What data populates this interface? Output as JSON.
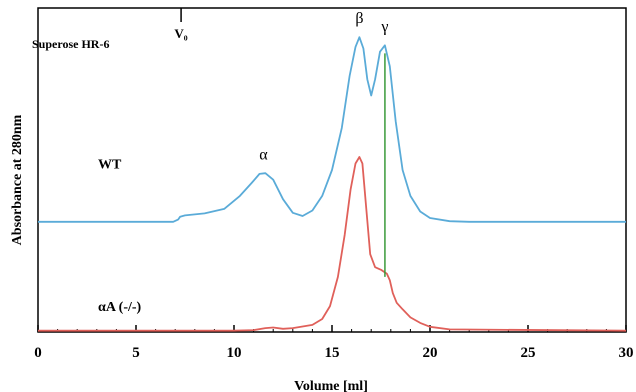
{
  "chart_data": {
    "type": "line",
    "title": "Superose HR-6",
    "xlabel": "Volume [ml]",
    "ylabel": "Absorbance at 280nm",
    "xlim": [
      0,
      30
    ],
    "ylim": [
      0,
      1
    ],
    "xticks": [
      0,
      5,
      10,
      15,
      20,
      25,
      30
    ],
    "void_marker": {
      "label": "V₀",
      "x": 7.3
    },
    "peaks": [
      {
        "label": "α",
        "x": 11.5
      },
      {
        "label": "β",
        "x": 16.4
      },
      {
        "label": "γ",
        "x": 17.7
      }
    ],
    "gamma_line_x": 17.7,
    "grid": false,
    "series": [
      {
        "name": "WT",
        "color": "#5aabd8",
        "label_y": 0.52,
        "x": [
          0,
          6.9,
          7.15,
          7.25,
          7.5,
          8.5,
          9.5,
          10.3,
          10.9,
          11.3,
          11.6,
          12.0,
          12.5,
          13.0,
          13.5,
          14.0,
          14.5,
          15.0,
          15.5,
          15.9,
          16.2,
          16.4,
          16.6,
          16.8,
          17.0,
          17.2,
          17.45,
          17.7,
          17.95,
          18.25,
          18.6,
          19.0,
          19.5,
          20.0,
          21.0,
          22.0,
          30.0
        ],
        "y": [
          0.34,
          0.34,
          0.347,
          0.356,
          0.36,
          0.366,
          0.38,
          0.42,
          0.46,
          0.488,
          0.49,
          0.47,
          0.41,
          0.368,
          0.358,
          0.375,
          0.42,
          0.5,
          0.63,
          0.79,
          0.88,
          0.91,
          0.875,
          0.78,
          0.73,
          0.78,
          0.865,
          0.885,
          0.82,
          0.65,
          0.5,
          0.42,
          0.372,
          0.352,
          0.342,
          0.34,
          0.34
        ]
      },
      {
        "name": "αA (-/-)",
        "color": "#e0605a",
        "label_y": 0.08,
        "x": [
          0,
          10.0,
          11.0,
          11.6,
          12.0,
          12.5,
          13.0,
          14.0,
          14.5,
          14.9,
          15.3,
          15.65,
          15.95,
          16.2,
          16.4,
          16.55,
          16.75,
          16.95,
          17.2,
          17.5,
          17.8,
          17.95,
          18.1,
          18.3,
          18.6,
          19.0,
          19.5,
          20.0,
          21.0,
          30.0
        ],
        "y": [
          0.004,
          0.004,
          0.006,
          0.012,
          0.014,
          0.01,
          0.012,
          0.022,
          0.04,
          0.08,
          0.17,
          0.3,
          0.44,
          0.52,
          0.54,
          0.52,
          0.38,
          0.24,
          0.2,
          0.192,
          0.18,
          0.16,
          0.12,
          0.09,
          0.07,
          0.045,
          0.028,
          0.016,
          0.008,
          0.004
        ]
      }
    ]
  }
}
